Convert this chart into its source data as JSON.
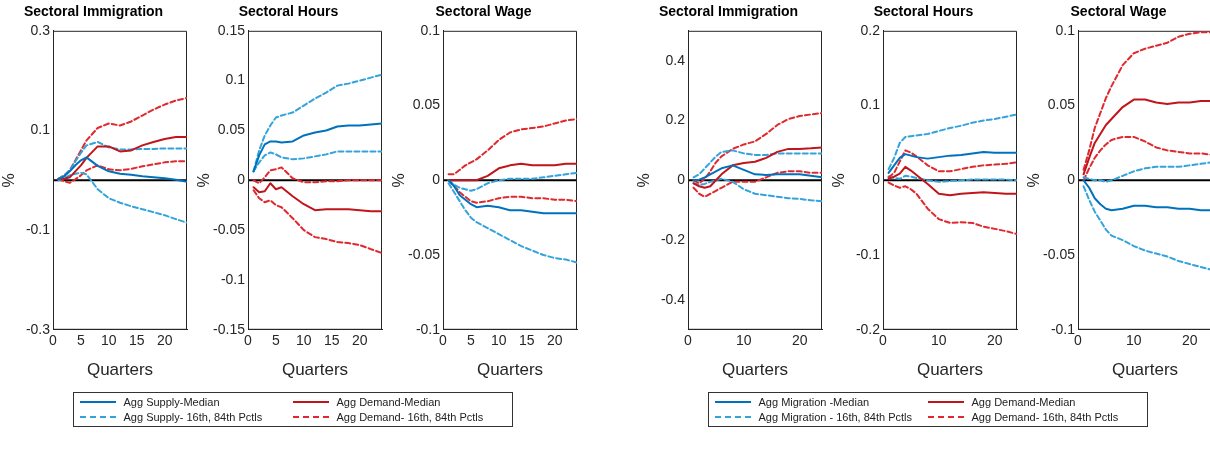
{
  "chart_data": [
    {
      "type": "line",
      "title": "Sectoral Immigration",
      "xlabel": "Quarters",
      "ylabel": "%",
      "x": [
        1,
        2,
        3,
        4,
        5,
        6,
        8,
        10,
        12,
        14,
        16,
        18,
        20,
        22,
        24
      ],
      "xlim": [
        0,
        24
      ],
      "xticks": [
        0,
        5,
        10,
        15,
        20
      ],
      "ylim": [
        -0.3,
        0.3
      ],
      "yticks": [
        -0.3,
        -0.1,
        0.1,
        0.3
      ],
      "ref_lines": [
        {
          "axis": "y",
          "value": 0,
          "color": "#000000"
        }
      ],
      "legend": false,
      "series": [
        {
          "color": "#0072bd",
          "line_style": "solid",
          "values": [
            0.003,
            0.008,
            0.018,
            0.03,
            0.04,
            0.046,
            0.029,
            0.018,
            0.013,
            0.011,
            0.008,
            0.006,
            0.004,
            0.001,
            -0.003
          ]
        },
        {
          "color": "#c0161b",
          "line_style": "solid",
          "values": [
            0.003,
            0.003,
            0.006,
            0.018,
            0.03,
            0.045,
            0.068,
            0.068,
            0.058,
            0.06,
            0.07,
            0.077,
            0.083,
            0.087,
            0.087
          ]
        },
        {
          "color": "#33a3dc",
          "line_style": "dashed",
          "values": [
            0.003,
            0.01,
            0.02,
            0.038,
            0.055,
            0.07,
            0.077,
            0.066,
            0.062,
            0.062,
            0.063,
            0.063,
            0.064,
            0.064,
            0.064
          ]
        },
        {
          "color": "#e0292f",
          "line_style": "dashed",
          "values": [
            0.003,
            0.01,
            0.02,
            0.04,
            0.06,
            0.08,
            0.105,
            0.114,
            0.11,
            0.118,
            0.13,
            0.142,
            0.152,
            0.16,
            0.165
          ]
        },
        {
          "color": "#33a3dc",
          "line_style": "dashed",
          "values": [
            0,
            0.005,
            0.01,
            0.013,
            0.015,
            0.012,
            -0.018,
            -0.036,
            -0.045,
            -0.052,
            -0.058,
            -0.064,
            -0.07,
            -0.078,
            -0.085
          ]
        },
        {
          "color": "#e0292f",
          "line_style": "dashed",
          "values": [
            0.003,
            -0.002,
            -0.005,
            0.002,
            0.01,
            0.02,
            0.03,
            0.022,
            0.02,
            0.023,
            0.028,
            0.032,
            0.036,
            0.038,
            0.038
          ]
        }
      ]
    },
    {
      "type": "line",
      "title": "Sectoral Hours",
      "xlabel": "Quarters",
      "ylabel": "%",
      "x": [
        1,
        2,
        3,
        4,
        5,
        6,
        8,
        10,
        12,
        14,
        16,
        18,
        20,
        22,
        24
      ],
      "xlim": [
        0,
        24
      ],
      "xticks": [
        0,
        5,
        10,
        15,
        20
      ],
      "ylim": [
        -0.15,
        0.15
      ],
      "yticks": [
        -0.15,
        -0.1,
        -0.05,
        0,
        0.05,
        0.1,
        0.15
      ],
      "ref_lines": [
        {
          "axis": "y",
          "value": 0,
          "color": "#000000"
        }
      ],
      "legend": "bottom",
      "series": [
        {
          "name": "Agg Supply-Median",
          "color": "#0072bd",
          "line_style": "solid",
          "values": [
            0.009,
            0.025,
            0.036,
            0.039,
            0.039,
            0.038,
            0.039,
            0.045,
            0.048,
            0.05,
            0.054,
            0.055,
            0.055,
            0.056,
            0.057
          ]
        },
        {
          "name": "Agg Demand-Median",
          "color": "#c0161b",
          "line_style": "solid",
          "values": [
            -0.007,
            -0.012,
            -0.011,
            -0.003,
            -0.009,
            -0.007,
            -0.016,
            -0.024,
            -0.03,
            -0.029,
            -0.029,
            -0.029,
            -0.03,
            -0.031,
            -0.031
          ]
        },
        {
          "name": "Agg Supply- 16th, 84th Pctls",
          "color": "#33a3dc",
          "line_style": "dashed",
          "values": [
            0.009,
            0.03,
            0.045,
            0.055,
            0.063,
            0.065,
            0.068,
            0.075,
            0.082,
            0.088,
            0.095,
            0.097,
            0.1,
            0.103,
            0.106
          ]
        },
        {
          "name": "Agg Demand- 16th, 84th Pctls",
          "color": "#e0292f",
          "line_style": "dashed",
          "values": [
            0,
            -0.003,
            0.003,
            0.01,
            0.011,
            0.013,
            0.002,
            -0.002,
            -0.002,
            -0.001,
            -0.001,
            0,
            0,
            0,
            0
          ]
        },
        {
          "color": "#33a3dc",
          "line_style": "dashed",
          "values": [
            0.009,
            0.018,
            0.025,
            0.028,
            0.026,
            0.023,
            0.021,
            0.022,
            0.024,
            0.026,
            0.029,
            0.029,
            0.029,
            0.029,
            0.029
          ]
        },
        {
          "color": "#e0292f",
          "line_style": "dashed",
          "values": [
            -0.01,
            -0.018,
            -0.022,
            -0.02,
            -0.025,
            -0.027,
            -0.038,
            -0.05,
            -0.057,
            -0.059,
            -0.062,
            -0.063,
            -0.065,
            -0.069,
            -0.073
          ]
        }
      ]
    },
    {
      "type": "line",
      "title": "Sectoral Wage",
      "xlabel": "Quarters",
      "ylabel": "%",
      "x": [
        1,
        2,
        3,
        4,
        5,
        6,
        8,
        10,
        12,
        14,
        16,
        18,
        20,
        22,
        24
      ],
      "xlim": [
        0,
        24
      ],
      "xticks": [
        0,
        5,
        10,
        15,
        20
      ],
      "ylim": [
        -0.1,
        0.1
      ],
      "yticks": [
        -0.1,
        -0.05,
        0,
        0.05,
        0.1
      ],
      "ref_lines": [
        {
          "axis": "y",
          "value": 0,
          "color": "#000000"
        }
      ],
      "legend": false,
      "series": [
        {
          "color": "#0072bd",
          "line_style": "solid",
          "values": [
            0,
            -0.004,
            -0.01,
            -0.013,
            -0.016,
            -0.018,
            -0.017,
            -0.018,
            -0.02,
            -0.02,
            -0.021,
            -0.022,
            -0.022,
            -0.022,
            -0.022
          ]
        },
        {
          "color": "#c0161b",
          "line_style": "solid",
          "values": [
            0,
            0,
            0,
            0,
            0,
            0,
            0.003,
            0.008,
            0.01,
            0.011,
            0.01,
            0.01,
            0.01,
            0.011,
            0.011
          ]
        },
        {
          "color": "#33a3dc",
          "line_style": "dashed",
          "values": [
            0,
            -0.003,
            -0.005,
            -0.006,
            -0.007,
            -0.006,
            -0.002,
            0,
            0.001,
            0.001,
            0.001,
            0.002,
            0.003,
            0.004,
            0.005
          ]
        },
        {
          "color": "#e0292f",
          "line_style": "dashed",
          "values": [
            0.004,
            0.004,
            0.007,
            0.01,
            0.012,
            0.014,
            0.02,
            0.027,
            0.032,
            0.034,
            0.035,
            0.036,
            0.038,
            0.04,
            0.041
          ]
        },
        {
          "color": "#33a3dc",
          "line_style": "dashed",
          "values": [
            -0.002,
            -0.008,
            -0.014,
            -0.02,
            -0.025,
            -0.028,
            -0.032,
            -0.036,
            -0.04,
            -0.044,
            -0.047,
            -0.05,
            -0.052,
            -0.053,
            -0.055
          ]
        },
        {
          "color": "#e0292f",
          "line_style": "dashed",
          "values": [
            0,
            -0.004,
            -0.008,
            -0.011,
            -0.014,
            -0.015,
            -0.014,
            -0.012,
            -0.011,
            -0.011,
            -0.012,
            -0.012,
            -0.013,
            -0.013,
            -0.014
          ]
        }
      ]
    },
    {
      "type": "line",
      "title": "Sectoral Immigration",
      "xlabel": "Quarters",
      "ylabel": "%",
      "x": [
        1,
        2,
        3,
        4,
        5,
        6,
        8,
        10,
        12,
        14,
        16,
        18,
        20,
        22,
        24
      ],
      "xlim": [
        0,
        24
      ],
      "xticks": [
        0,
        10,
        20
      ],
      "ylim": [
        -0.5,
        0.5
      ],
      "yticks": [
        -0.4,
        -0.2,
        0,
        0.2,
        0.4
      ],
      "ref_lines": [
        {
          "axis": "y",
          "value": 0,
          "color": "#000000"
        }
      ],
      "legend": false,
      "series": [
        {
          "color": "#0072bd",
          "line_style": "solid",
          "values": [
            0,
            0.002,
            0.01,
            0.02,
            0.03,
            0.04,
            0.05,
            0.035,
            0.02,
            0.018,
            0.02,
            0.02,
            0.02,
            0.015,
            0.01
          ]
        },
        {
          "color": "#c0161b",
          "line_style": "solid",
          "values": [
            -0.01,
            -0.02,
            -0.025,
            -0.02,
            0,
            0.02,
            0.05,
            0.058,
            0.062,
            0.075,
            0.095,
            0.105,
            0.105,
            0.107,
            0.11
          ]
        },
        {
          "color": "#33a3dc",
          "line_style": "dashed",
          "values": [
            0.01,
            0.02,
            0.04,
            0.06,
            0.08,
            0.095,
            0.1,
            0.09,
            0.085,
            0.085,
            0.09,
            0.09,
            0.09,
            0.09,
            0.09
          ]
        },
        {
          "color": "#e0292f",
          "line_style": "dashed",
          "values": [
            0,
            -0.01,
            0.005,
            0.03,
            0.06,
            0.08,
            0.105,
            0.12,
            0.13,
            0.155,
            0.185,
            0.205,
            0.215,
            0.22,
            0.225
          ]
        },
        {
          "color": "#33a3dc",
          "line_style": "dashed",
          "values": [
            -0.01,
            -0.015,
            -0.012,
            -0.005,
            0,
            0.005,
            -0.005,
            -0.03,
            -0.045,
            -0.05,
            -0.055,
            -0.06,
            -0.062,
            -0.067,
            -0.07
          ]
        },
        {
          "color": "#e0292f",
          "line_style": "dashed",
          "values": [
            -0.025,
            -0.045,
            -0.055,
            -0.045,
            -0.035,
            -0.025,
            -0.005,
            -0.005,
            -0.005,
            0.01,
            0.025,
            0.03,
            0.03,
            0.025,
            0.025
          ]
        }
      ]
    },
    {
      "type": "line",
      "title": "Sectoral Hours",
      "xlabel": "Quarters",
      "ylabel": "%",
      "x": [
        1,
        2,
        3,
        4,
        5,
        6,
        8,
        10,
        12,
        14,
        16,
        18,
        20,
        22,
        24
      ],
      "xlim": [
        0,
        24
      ],
      "xticks": [
        0,
        10,
        20
      ],
      "ylim": [
        -0.2,
        0.2
      ],
      "yticks": [
        -0.2,
        -0.1,
        0,
        0.1,
        0.2
      ],
      "ref_lines": [
        {
          "axis": "y",
          "value": 0,
          "color": "#000000"
        }
      ],
      "legend": "bottom",
      "series": [
        {
          "name": "Agg Migration -Median",
          "color": "#0072bd",
          "line_style": "solid",
          "values": [
            0.01,
            0.02,
            0.03,
            0.035,
            0.033,
            0.031,
            0.029,
            0.031,
            0.033,
            0.034,
            0.036,
            0.038,
            0.037,
            0.037,
            0.037
          ]
        },
        {
          "name": "Agg Demand-Median",
          "color": "#c0161b",
          "line_style": "solid",
          "values": [
            0.002,
            0.005,
            0.009,
            0.018,
            0.013,
            0.007,
            -0.005,
            -0.018,
            -0.02,
            -0.018,
            -0.017,
            -0.016,
            -0.017,
            -0.018,
            -0.018
          ]
        },
        {
          "name": "Agg Migration - 16th, 84th Pctls",
          "color": "#33a3dc",
          "line_style": "dashed",
          "values": [
            0.015,
            0.03,
            0.05,
            0.058,
            0.059,
            0.06,
            0.062,
            0.066,
            0.07,
            0.073,
            0.077,
            0.08,
            0.082,
            0.085,
            0.088
          ]
        },
        {
          "name": "Agg Demand- 16th, 84th Pctls",
          "color": "#e0292f",
          "line_style": "dashed",
          "values": [
            0.004,
            0.01,
            0.025,
            0.04,
            0.037,
            0.032,
            0.02,
            0.012,
            0.012,
            0.015,
            0.018,
            0.02,
            0.021,
            0.022,
            0.024
          ]
        },
        {
          "color": "#33a3dc",
          "line_style": "dashed",
          "values": [
            0.005,
            0.003,
            0.002,
            0.006,
            0.005,
            0.003,
            0,
            -0.002,
            -0.001,
            0,
            0.001,
            0.001,
            0.001,
            0.001,
            0
          ]
        },
        {
          "color": "#e0292f",
          "line_style": "dashed",
          "values": [
            -0.003,
            -0.007,
            -0.01,
            -0.008,
            -0.012,
            -0.018,
            -0.038,
            -0.052,
            -0.057,
            -0.056,
            -0.057,
            -0.062,
            -0.065,
            -0.068,
            -0.072
          ]
        }
      ]
    },
    {
      "type": "line",
      "title": "Sectoral Wage",
      "xlabel": "Quarters",
      "ylabel": "%",
      "x": [
        1,
        2,
        3,
        4,
        5,
        6,
        8,
        10,
        12,
        14,
        16,
        18,
        20,
        22,
        24
      ],
      "xlim": [
        0,
        24
      ],
      "xticks": [
        0,
        10,
        20
      ],
      "ylim": [
        -0.1,
        0.1
      ],
      "yticks": [
        -0.1,
        -0.05,
        0,
        0.05,
        0.1
      ],
      "ref_lines": [
        {
          "axis": "y",
          "value": 0,
          "color": "#000000"
        }
      ],
      "legend": false,
      "series": [
        {
          "color": "#0072bd",
          "line_style": "solid",
          "values": [
            0,
            -0.005,
            -0.012,
            -0.016,
            -0.019,
            -0.02,
            -0.019,
            -0.017,
            -0.017,
            -0.018,
            -0.018,
            -0.019,
            -0.019,
            -0.02,
            -0.02
          ]
        },
        {
          "color": "#c0161b",
          "line_style": "solid",
          "values": [
            0.004,
            0.015,
            0.025,
            0.031,
            0.037,
            0.041,
            0.049,
            0.054,
            0.054,
            0.052,
            0.051,
            0.052,
            0.052,
            0.053,
            0.053
          ]
        },
        {
          "color": "#33a3dc",
          "line_style": "dashed",
          "values": [
            0.002,
            0.001,
            0,
            0,
            -0.001,
            0,
            0.003,
            0.006,
            0.008,
            0.009,
            0.009,
            0.009,
            0.01,
            0.011,
            0.012
          ]
        },
        {
          "color": "#e0292f",
          "line_style": "dashed",
          "values": [
            0.007,
            0.02,
            0.035,
            0.045,
            0.055,
            0.063,
            0.077,
            0.085,
            0.088,
            0.09,
            0.092,
            0.096,
            0.098,
            0.099,
            0.099
          ]
        },
        {
          "color": "#33a3dc",
          "line_style": "dashed",
          "values": [
            -0.004,
            -0.013,
            -0.021,
            -0.027,
            -0.033,
            -0.037,
            -0.04,
            -0.044,
            -0.047,
            -0.049,
            -0.051,
            -0.054,
            -0.056,
            -0.058,
            -0.06
          ]
        },
        {
          "color": "#e0292f",
          "line_style": "dashed",
          "values": [
            0,
            0.008,
            0.015,
            0.02,
            0.024,
            0.027,
            0.029,
            0.029,
            0.026,
            0.022,
            0.02,
            0.019,
            0.018,
            0.018,
            0.017
          ]
        }
      ]
    }
  ]
}
